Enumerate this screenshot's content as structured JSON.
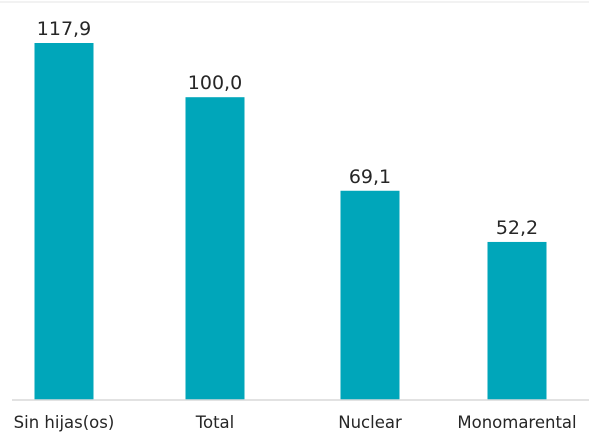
{
  "chart_data": {
    "type": "bar",
    "categories": [
      "Sin hijas(os)",
      "Total",
      "Nuclear",
      "Monomarental"
    ],
    "values": [
      117.9,
      100.0,
      69.1,
      52.2
    ],
    "value_labels": [
      "117,9",
      "100,0",
      "69,1",
      "52,2"
    ],
    "title": "",
    "xlabel": "",
    "ylabel": "",
    "ylim": [
      0,
      117.9
    ],
    "grid": false,
    "legend": "none",
    "bar_color": "#00A6BA",
    "axis_color": "#D9D9D9"
  }
}
